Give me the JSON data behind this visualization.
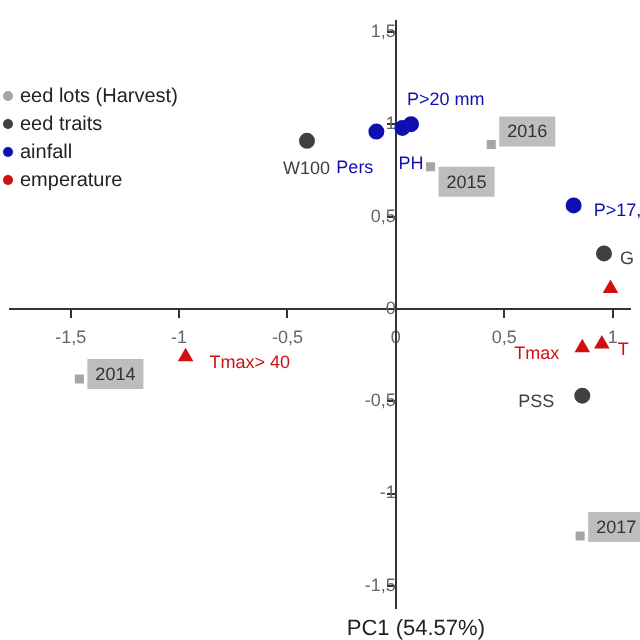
{
  "chart_data": {
    "type": "scatter",
    "xlabel": "PC1 (54.57%)",
    "xlim": [
      -1.78,
      1.08
    ],
    "ylim": [
      -1.62,
      1.56
    ],
    "xticks": [
      {
        "value": -1.5,
        "label": "-1,5"
      },
      {
        "value": -1,
        "label": "-1"
      },
      {
        "value": -0.5,
        "label": "-0,5"
      },
      {
        "value": 0,
        "label": "0"
      },
      {
        "value": 0.5,
        "label": "0,5"
      },
      {
        "value": 1,
        "label": "1"
      }
    ],
    "yticks": [
      {
        "value": -1.5,
        "label": "-1,5"
      },
      {
        "value": -1,
        "label": "-1"
      },
      {
        "value": -0.5,
        "label": "-0,5"
      },
      {
        "value": 0,
        "label": "0"
      },
      {
        "value": 0.5,
        "label": "0,5"
      },
      {
        "value": 1,
        "label": "1"
      },
      {
        "value": 1.5,
        "label": "1,5"
      }
    ],
    "grid": false,
    "legend": "top left",
    "series": [
      {
        "name": "eed lots (Harvest)",
        "color": "#a6a6a6",
        "marker": "square",
        "x": [
          -1.46,
          0.16,
          0.44,
          0.85
        ],
        "values": [
          -0.38,
          0.77,
          0.89,
          -1.23
        ]
      },
      {
        "name": "eed traits",
        "color": "#404040",
        "marker": "circle",
        "x": [
          -0.41,
          0.96,
          0.86
        ],
        "values": [
          0.91,
          0.3,
          -0.47
        ]
      },
      {
        "name": "ainfall",
        "color": "#1010b0",
        "marker": "circle",
        "x": [
          -0.09,
          0.03,
          0.07,
          0.82
        ],
        "values": [
          0.96,
          0.98,
          1.0,
          0.56
        ]
      },
      {
        "name": "emperature",
        "color": "#d01010",
        "marker": "triangle",
        "x": [
          0.99,
          0.86,
          0.95,
          -0.97
        ],
        "values": [
          0.11,
          -0.21,
          -0.19,
          -0.26
        ]
      }
    ],
    "annotations": [
      {
        "text": "2014",
        "x": -1.46,
        "y": -0.38
      },
      {
        "text": "2015",
        "x": 0.16,
        "y": 0.77
      },
      {
        "text": "2016",
        "x": 0.44,
        "y": 0.89
      },
      {
        "text": "2017",
        "x": 0.85,
        "y": -1.23
      },
      {
        "text": "W100",
        "x": -0.41,
        "y": 0.91
      },
      {
        "text": "G",
        "x": 0.96,
        "y": 0.3
      },
      {
        "text": "PSS",
        "x": 0.86,
        "y": -0.47
      },
      {
        "text": "Pers",
        "x": -0.09,
        "y": 0.96
      },
      {
        "text": "PH",
        "x": 0.03,
        "y": 0.98
      },
      {
        "text": "P>20 mm",
        "x": 0.07,
        "y": 1.0
      },
      {
        "text": "P>17,",
        "x": 0.82,
        "y": 0.56
      },
      {
        "text": "Tmax",
        "x": 0.86,
        "y": -0.21
      },
      {
        "text": "T",
        "x": 0.95,
        "y": -0.19
      },
      {
        "text": "Tmax> 40",
        "x": -0.97,
        "y": -0.26
      }
    ]
  }
}
